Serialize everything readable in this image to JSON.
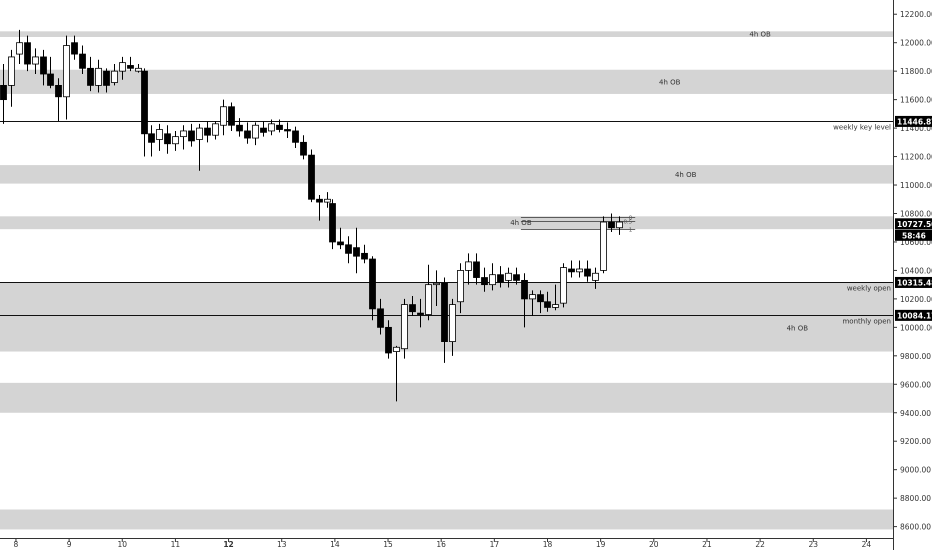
{
  "chart_data": {
    "type": "candlestick",
    "y_axis": {
      "ticks": [
        8600,
        8800,
        9000,
        9200,
        9400,
        9600,
        9800,
        10000,
        10200,
        10400,
        10600,
        10800,
        11000,
        11200,
        11400,
        11600,
        11800,
        12000,
        12200
      ],
      "tick_labels": [
        "8600.00",
        "8800.00",
        "9000.00",
        "9200.00",
        "9400.00",
        "9600.00",
        "9800.00",
        "10000.00",
        "10200.00",
        "10400.00",
        "10600.00",
        "10800.00",
        "11000.00",
        "11200.00",
        "11400.00",
        "11600.00",
        "11800.00",
        "12000.00",
        "12200.00"
      ],
      "ylim": [
        8520,
        12300
      ]
    },
    "x_axis": {
      "tick_labels": [
        "8",
        "9",
        "10",
        "11",
        "12",
        "13",
        "14",
        "15",
        "16",
        "17",
        "18",
        "19",
        "20",
        "21",
        "22",
        "23",
        "24"
      ],
      "bold_labels": [
        "12"
      ],
      "xlim": [
        7.7,
        24.5
      ]
    },
    "zones": [
      {
        "low": 12040,
        "high": 12080,
        "label": "4h OB",
        "label_x": 22.0
      },
      {
        "low": 11640,
        "high": 11810,
        "label": "4h OB",
        "label_x": 20.3
      },
      {
        "low": 11010,
        "high": 11140,
        "label": "4h OB",
        "label_x": 20.6
      },
      {
        "low": 10690,
        "high": 10780,
        "label": "4h OB",
        "label_x": 17.5
      },
      {
        "low": 9830,
        "high": 10315,
        "label": "4h OB",
        "label_x": 22.7,
        "label_y": 9995
      },
      {
        "low": 9400,
        "high": 9610,
        "label": ""
      },
      {
        "low": 8580,
        "high": 8720,
        "label": ""
      }
    ],
    "levels": [
      {
        "price": 11446.87,
        "tag": "11446.87",
        "label": "weekly key level"
      },
      {
        "price": 10315.48,
        "tag": "10315.48",
        "label": "weekly open"
      },
      {
        "price": 10084.17,
        "tag": "10084.17",
        "label": "monthly open"
      }
    ],
    "current_price": {
      "value": "10727.50",
      "timer": "58:46"
    },
    "fib": {
      "x_start": 17.5,
      "x_end": 19.65,
      "top": 10775,
      "mid": 10745,
      "bottom": 10690,
      "labels": [
        "0",
        "0.5",
        "1"
      ]
    },
    "candles": [
      {
        "x": 7.75,
        "o": 11700,
        "h": 11850,
        "l": 11430,
        "c": 11600
      },
      {
        "x": 7.9,
        "o": 11700,
        "h": 11950,
        "l": 11550,
        "c": 11900
      },
      {
        "x": 8.05,
        "o": 11920,
        "h": 12090,
        "l": 11850,
        "c": 12000
      },
      {
        "x": 8.2,
        "o": 12000,
        "h": 12050,
        "l": 11800,
        "c": 11850
      },
      {
        "x": 8.35,
        "o": 11850,
        "h": 11960,
        "l": 11780,
        "c": 11900
      },
      {
        "x": 8.5,
        "o": 11900,
        "h": 11950,
        "l": 11700,
        "c": 11780
      },
      {
        "x": 8.65,
        "o": 11780,
        "h": 11900,
        "l": 11680,
        "c": 11700
      },
      {
        "x": 8.8,
        "o": 11700,
        "h": 11750,
        "l": 11450,
        "c": 11620
      },
      {
        "x": 8.95,
        "o": 11620,
        "h": 12050,
        "l": 11460,
        "c": 11980
      },
      {
        "x": 9.1,
        "o": 12000,
        "h": 12050,
        "l": 11880,
        "c": 11920
      },
      {
        "x": 9.25,
        "o": 11920,
        "h": 11980,
        "l": 11780,
        "c": 11820
      },
      {
        "x": 9.4,
        "o": 11820,
        "h": 11900,
        "l": 11660,
        "c": 11700
      },
      {
        "x": 9.55,
        "o": 11700,
        "h": 11880,
        "l": 11650,
        "c": 11820
      },
      {
        "x": 9.7,
        "o": 11800,
        "h": 11820,
        "l": 11650,
        "c": 11700
      },
      {
        "x": 9.85,
        "o": 11720,
        "h": 11850,
        "l": 11700,
        "c": 11800
      },
      {
        "x": 10.0,
        "o": 11800,
        "h": 11900,
        "l": 11740,
        "c": 11860
      },
      {
        "x": 10.15,
        "o": 11840,
        "h": 11900,
        "l": 11800,
        "c": 11820
      },
      {
        "x": 10.3,
        "o": 11800,
        "h": 11850,
        "l": 11790,
        "c": 11820
      },
      {
        "x": 10.4,
        "o": 11800,
        "h": 11820,
        "l": 11200,
        "c": 11360
      },
      {
        "x": 10.55,
        "o": 11360,
        "h": 11420,
        "l": 11200,
        "c": 11300
      },
      {
        "x": 10.7,
        "o": 11320,
        "h": 11430,
        "l": 11240,
        "c": 11390
      },
      {
        "x": 10.85,
        "o": 11360,
        "h": 11420,
        "l": 11220,
        "c": 11290
      },
      {
        "x": 11.0,
        "o": 11290,
        "h": 11380,
        "l": 11240,
        "c": 11340
      },
      {
        "x": 11.15,
        "o": 11340,
        "h": 11420,
        "l": 11250,
        "c": 11380
      },
      {
        "x": 11.3,
        "o": 11380,
        "h": 11430,
        "l": 11270,
        "c": 11310
      },
      {
        "x": 11.45,
        "o": 11320,
        "h": 11430,
        "l": 11100,
        "c": 11400
      },
      {
        "x": 11.6,
        "o": 11400,
        "h": 11450,
        "l": 11300,
        "c": 11350
      },
      {
        "x": 11.75,
        "o": 11350,
        "h": 11450,
        "l": 11320,
        "c": 11430
      },
      {
        "x": 11.9,
        "o": 11420,
        "h": 11600,
        "l": 11350,
        "c": 11550
      },
      {
        "x": 12.05,
        "o": 11550,
        "h": 11580,
        "l": 11380,
        "c": 11420
      },
      {
        "x": 12.2,
        "o": 11420,
        "h": 11470,
        "l": 11340,
        "c": 11380
      },
      {
        "x": 12.35,
        "o": 11380,
        "h": 11440,
        "l": 11290,
        "c": 11330
      },
      {
        "x": 12.5,
        "o": 11330,
        "h": 11440,
        "l": 11280,
        "c": 11420
      },
      {
        "x": 12.65,
        "o": 11400,
        "h": 11450,
        "l": 11340,
        "c": 11370
      },
      {
        "x": 12.8,
        "o": 11380,
        "h": 11460,
        "l": 11350,
        "c": 11430
      },
      {
        "x": 12.95,
        "o": 11420,
        "h": 11460,
        "l": 11370,
        "c": 11390
      },
      {
        "x": 13.1,
        "o": 11390,
        "h": 11440,
        "l": 11330,
        "c": 11380
      },
      {
        "x": 13.25,
        "o": 11380,
        "h": 11410,
        "l": 11260,
        "c": 11300
      },
      {
        "x": 13.4,
        "o": 11300,
        "h": 11350,
        "l": 11180,
        "c": 11210
      },
      {
        "x": 13.55,
        "o": 11210,
        "h": 11250,
        "l": 10880,
        "c": 10900
      },
      {
        "x": 13.7,
        "o": 10900,
        "h": 10930,
        "l": 10750,
        "c": 10880
      },
      {
        "x": 13.85,
        "o": 10880,
        "h": 10950,
        "l": 10840,
        "c": 10900
      },
      {
        "x": 13.95,
        "o": 10870,
        "h": 10900,
        "l": 10550,
        "c": 10600
      },
      {
        "x": 14.1,
        "o": 10600,
        "h": 10700,
        "l": 10550,
        "c": 10580
      },
      {
        "x": 14.25,
        "o": 10580,
        "h": 10640,
        "l": 10450,
        "c": 10520
      },
      {
        "x": 14.4,
        "o": 10560,
        "h": 10700,
        "l": 10380,
        "c": 10500
      },
      {
        "x": 14.55,
        "o": 10520,
        "h": 10580,
        "l": 10450,
        "c": 10480
      },
      {
        "x": 14.7,
        "o": 10480,
        "h": 10500,
        "l": 10050,
        "c": 10130
      },
      {
        "x": 14.85,
        "o": 10130,
        "h": 10200,
        "l": 9950,
        "c": 10000
      },
      {
        "x": 15.0,
        "o": 10000,
        "h": 10050,
        "l": 9780,
        "c": 9820
      },
      {
        "x": 15.15,
        "o": 9830,
        "h": 9870,
        "l": 9480,
        "c": 9860
      },
      {
        "x": 15.3,
        "o": 9850,
        "h": 10200,
        "l": 9780,
        "c": 10160
      },
      {
        "x": 15.45,
        "o": 10160,
        "h": 10220,
        "l": 10080,
        "c": 10110
      },
      {
        "x": 15.6,
        "o": 10100,
        "h": 10200,
        "l": 10000,
        "c": 10090
      },
      {
        "x": 15.75,
        "o": 10090,
        "h": 10440,
        "l": 10050,
        "c": 10300
      },
      {
        "x": 15.9,
        "o": 10300,
        "h": 10400,
        "l": 10150,
        "c": 10310
      },
      {
        "x": 16.05,
        "o": 10310,
        "h": 10350,
        "l": 9750,
        "c": 9900
      },
      {
        "x": 16.2,
        "o": 9900,
        "h": 10200,
        "l": 9800,
        "c": 10160
      },
      {
        "x": 16.35,
        "o": 10180,
        "h": 10450,
        "l": 10100,
        "c": 10400
      },
      {
        "x": 16.5,
        "o": 10400,
        "h": 10520,
        "l": 10300,
        "c": 10460
      },
      {
        "x": 16.65,
        "o": 10460,
        "h": 10520,
        "l": 10300,
        "c": 10350
      },
      {
        "x": 16.8,
        "o": 10350,
        "h": 10420,
        "l": 10250,
        "c": 10300
      },
      {
        "x": 16.95,
        "o": 10300,
        "h": 10450,
        "l": 10260,
        "c": 10370
      },
      {
        "x": 17.1,
        "o": 10370,
        "h": 10430,
        "l": 10280,
        "c": 10320
      },
      {
        "x": 17.25,
        "o": 10330,
        "h": 10420,
        "l": 10280,
        "c": 10380
      },
      {
        "x": 17.4,
        "o": 10370,
        "h": 10420,
        "l": 10300,
        "c": 10330
      },
      {
        "x": 17.55,
        "o": 10330,
        "h": 10380,
        "l": 10000,
        "c": 10200
      },
      {
        "x": 17.7,
        "o": 10200,
        "h": 10260,
        "l": 10080,
        "c": 10230
      },
      {
        "x": 17.85,
        "o": 10230,
        "h": 10260,
        "l": 10100,
        "c": 10180
      },
      {
        "x": 18.0,
        "o": 10180,
        "h": 10250,
        "l": 10110,
        "c": 10140
      },
      {
        "x": 18.15,
        "o": 10140,
        "h": 10300,
        "l": 10120,
        "c": 10160
      },
      {
        "x": 18.3,
        "o": 10170,
        "h": 10450,
        "l": 10140,
        "c": 10420
      },
      {
        "x": 18.45,
        "o": 10410,
        "h": 10470,
        "l": 10350,
        "c": 10390
      },
      {
        "x": 18.6,
        "o": 10390,
        "h": 10470,
        "l": 10350,
        "c": 10410
      },
      {
        "x": 18.75,
        "o": 10410,
        "h": 10470,
        "l": 10320,
        "c": 10360
      },
      {
        "x": 18.9,
        "o": 10330,
        "h": 10420,
        "l": 10270,
        "c": 10380
      },
      {
        "x": 19.05,
        "o": 10400,
        "h": 10780,
        "l": 10380,
        "c": 10740
      },
      {
        "x": 19.2,
        "o": 10740,
        "h": 10800,
        "l": 10670,
        "c": 10700
      },
      {
        "x": 19.35,
        "o": 10700,
        "h": 10780,
        "l": 10650,
        "c": 10740
      }
    ]
  }
}
